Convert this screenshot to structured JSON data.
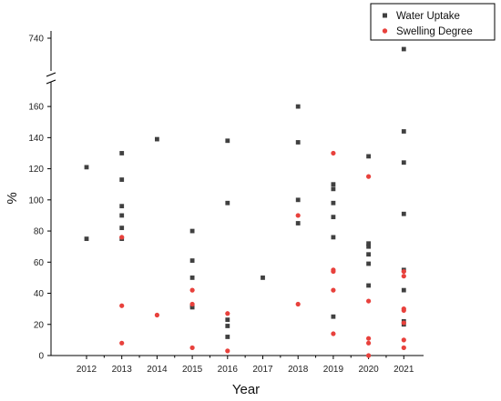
{
  "chart_data": {
    "type": "scatter",
    "xlabel": "Year",
    "ylabel": "%",
    "categories": [
      "2012",
      "2013",
      "2014",
      "2015",
      "2016",
      "2017",
      "2018",
      "2019",
      "2020",
      "2021"
    ],
    "y_ticks_lower": [
      0,
      20,
      40,
      60,
      80,
      100,
      120,
      140,
      160
    ],
    "y_ticks_upper": [
      740
    ],
    "ylim_lower": [
      0,
      170
    ],
    "ylim_upper": [
      710,
      745
    ],
    "axis_break": true,
    "grid": false,
    "legend_position": "top-right",
    "series": [
      {
        "name": "Water Uptake",
        "marker": "square",
        "color": "#404040",
        "points": [
          [
            "2012",
            121
          ],
          [
            "2012",
            75
          ],
          [
            "2013",
            130
          ],
          [
            "2013",
            113
          ],
          [
            "2013",
            96
          ],
          [
            "2013",
            90
          ],
          [
            "2013",
            82
          ],
          [
            "2013",
            75
          ],
          [
            "2014",
            139
          ],
          [
            "2015",
            80
          ],
          [
            "2015",
            61
          ],
          [
            "2015",
            50
          ],
          [
            "2015",
            32
          ],
          [
            "2015",
            31
          ],
          [
            "2016",
            138
          ],
          [
            "2016",
            98
          ],
          [
            "2016",
            23
          ],
          [
            "2016",
            19
          ],
          [
            "2016",
            12
          ],
          [
            "2017",
            50
          ],
          [
            "2018",
            160
          ],
          [
            "2018",
            137
          ],
          [
            "2018",
            100
          ],
          [
            "2018",
            85
          ],
          [
            "2019",
            110
          ],
          [
            "2019",
            107
          ],
          [
            "2019",
            98
          ],
          [
            "2019",
            89
          ],
          [
            "2019",
            76
          ],
          [
            "2019",
            25
          ],
          [
            "2020",
            128
          ],
          [
            "2020",
            72
          ],
          [
            "2020",
            70
          ],
          [
            "2020",
            65
          ],
          [
            "2020",
            59
          ],
          [
            "2020",
            45
          ],
          [
            "2021",
            730
          ],
          [
            "2021",
            144
          ],
          [
            "2021",
            124
          ],
          [
            "2021",
            91
          ],
          [
            "2021",
            55
          ],
          [
            "2021",
            42
          ],
          [
            "2021",
            22
          ],
          [
            "2021",
            20
          ]
        ]
      },
      {
        "name": "Swelling Degree",
        "marker": "circle",
        "color": "#e8413c",
        "points": [
          [
            "2013",
            76
          ],
          [
            "2013",
            32
          ],
          [
            "2013",
            8
          ],
          [
            "2014",
            26
          ],
          [
            "2015",
            42
          ],
          [
            "2015",
            33
          ],
          [
            "2015",
            5
          ],
          [
            "2016",
            27
          ],
          [
            "2016",
            3
          ],
          [
            "2018",
            90
          ],
          [
            "2018",
            33
          ],
          [
            "2019",
            130
          ],
          [
            "2019",
            55
          ],
          [
            "2019",
            54
          ],
          [
            "2019",
            42
          ],
          [
            "2019",
            14
          ],
          [
            "2020",
            115
          ],
          [
            "2020",
            35
          ],
          [
            "2020",
            11
          ],
          [
            "2020",
            8
          ],
          [
            "2020",
            0
          ],
          [
            "2021",
            54
          ],
          [
            "2021",
            51
          ],
          [
            "2021",
            30
          ],
          [
            "2021",
            29
          ],
          [
            "2021",
            21
          ],
          [
            "2021",
            10
          ],
          [
            "2021",
            5
          ]
        ]
      }
    ]
  }
}
